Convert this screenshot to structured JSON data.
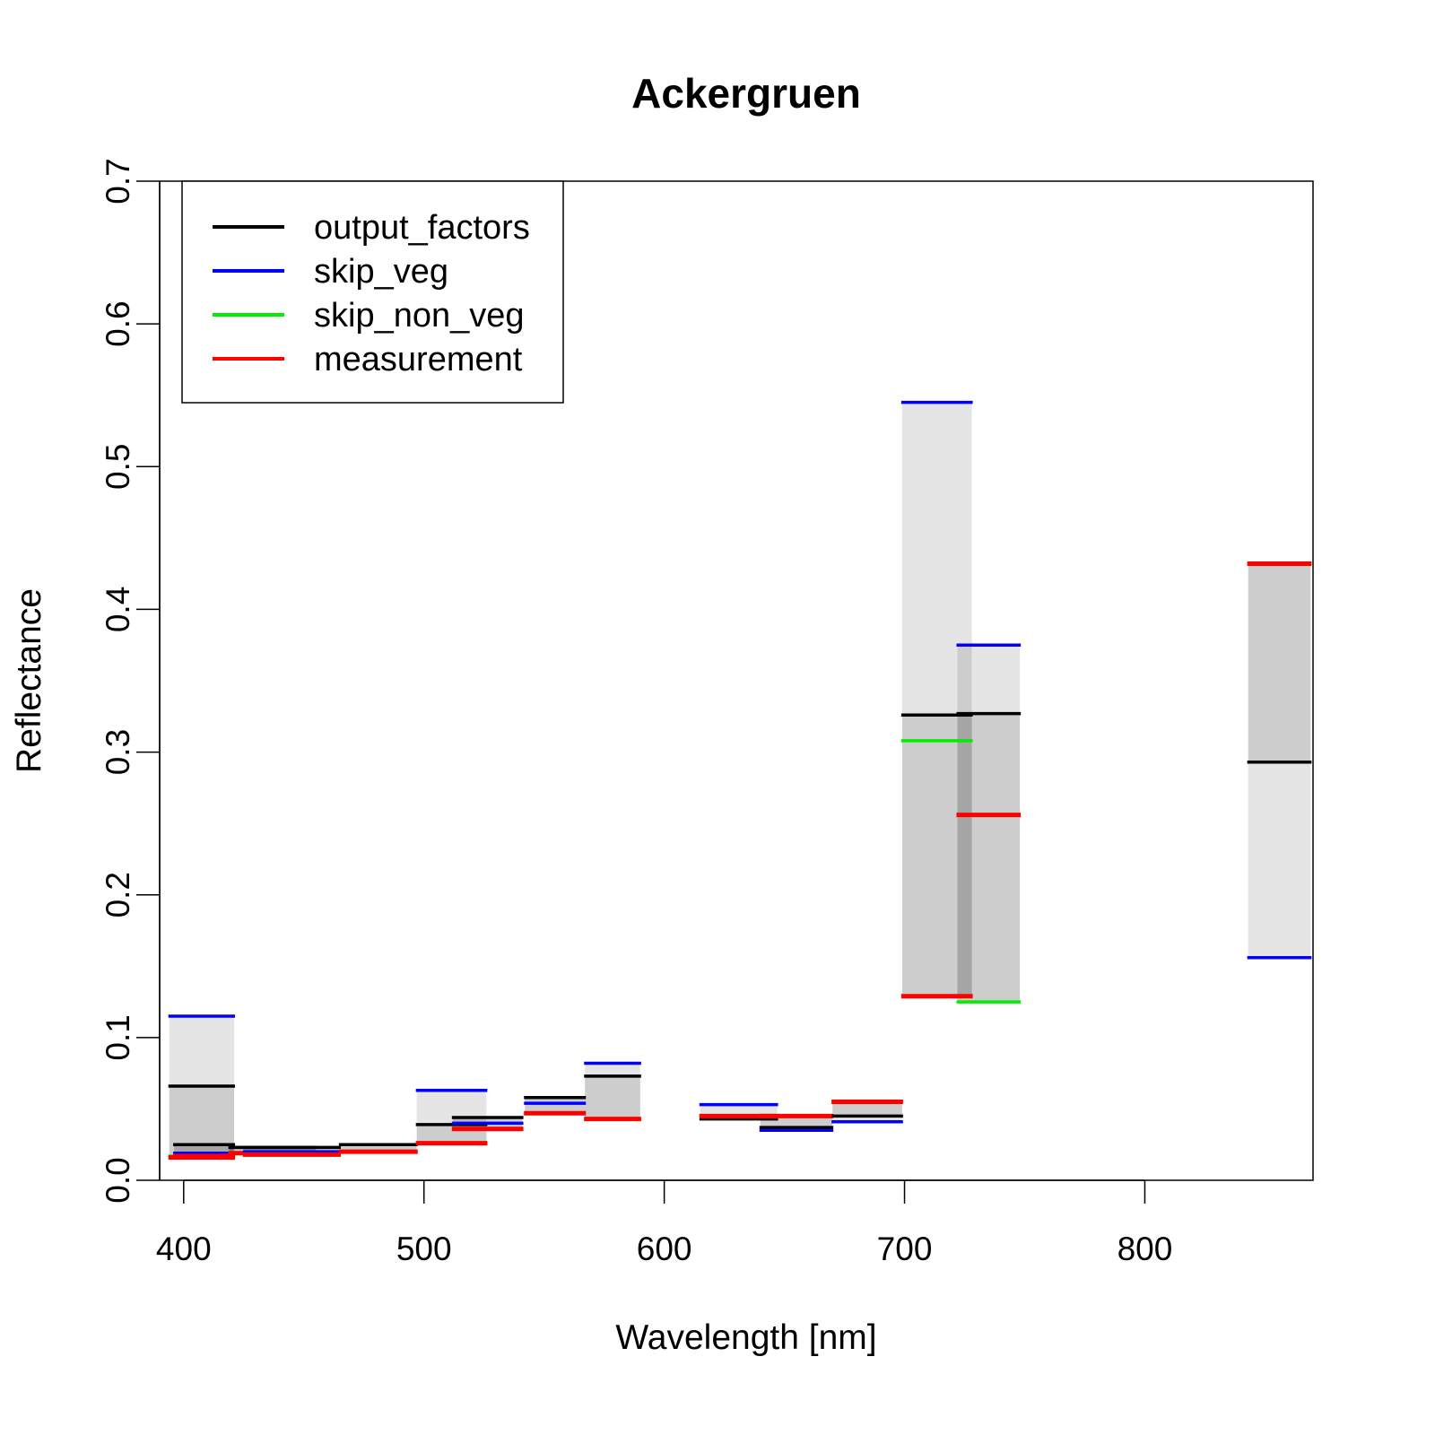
{
  "chart_data": {
    "type": "bar",
    "title": "Ackergruen",
    "xlabel": "Wavelength [nm]",
    "ylabel": "Reflectance",
    "xlim": [
      390,
      870
    ],
    "ylim": [
      0,
      0.7
    ],
    "xticks": [
      "400",
      "500",
      "600",
      "700",
      "800"
    ],
    "yticks": [
      "0.0",
      "0.1",
      "0.2",
      "0.3",
      "0.4",
      "0.5",
      "0.6",
      "0.7"
    ],
    "legend_position": "top-left",
    "grid": false,
    "series_colors": {
      "output_factors": "#000000",
      "skip_veg": "#0000ff",
      "skip_non_veg": "#00ee00",
      "measurement": "#ff0000"
    },
    "legend": [
      {
        "name": "output_factors",
        "color": "#000000"
      },
      {
        "name": "skip_veg",
        "color": "#0000ff"
      },
      {
        "name": "skip_non_veg",
        "color": "#00ee00"
      },
      {
        "name": "measurement",
        "color": "#ff0000"
      }
    ],
    "bands": [
      {
        "x0": 394,
        "x1": 421,
        "output_factors": 0.066,
        "skip_veg": 0.115,
        "skip_non_veg": 0.017,
        "measurement": 0.016
      },
      {
        "x0": 396,
        "x1": 421,
        "output_factors": 0.025,
        "skip_veg": 0.019,
        "skip_non_veg": 0.017,
        "measurement": 0.017
      },
      {
        "x0": 419,
        "x1": 455,
        "output_factors": 0.023,
        "skip_veg": 0.023,
        "skip_non_veg": 0.019,
        "measurement": 0.019
      },
      {
        "x0": 425,
        "x1": 465,
        "output_factors": 0.023,
        "skip_veg": 0.02,
        "skip_non_veg": 0.018,
        "measurement": 0.018
      },
      {
        "x0": 465,
        "x1": 497,
        "output_factors": 0.025,
        "skip_veg": 0.025,
        "skip_non_veg": 0.02,
        "measurement": 0.02
      },
      {
        "x0": 497,
        "x1": 526,
        "output_factors": 0.039,
        "skip_veg": 0.063,
        "skip_non_veg": 0.026,
        "measurement": 0.026
      },
      {
        "x0": 512,
        "x1": 541,
        "output_factors": 0.044,
        "skip_veg": 0.04,
        "skip_non_veg": 0.036,
        "measurement": 0.036
      },
      {
        "x0": 542,
        "x1": 567,
        "output_factors": 0.058,
        "skip_veg": 0.054,
        "skip_non_veg": 0.047,
        "measurement": 0.047
      },
      {
        "x0": 567,
        "x1": 590,
        "output_factors": 0.073,
        "skip_veg": 0.082,
        "skip_non_veg": 0.043,
        "measurement": 0.043
      },
      {
        "x0": 615,
        "x1": 647,
        "output_factors": 0.043,
        "skip_veg": 0.053,
        "skip_non_veg": 0.045,
        "measurement": 0.045
      },
      {
        "x0": 640,
        "x1": 670,
        "output_factors": 0.037,
        "skip_veg": 0.035,
        "skip_non_veg": 0.045,
        "measurement": 0.045
      },
      {
        "x0": 670,
        "x1": 699,
        "output_factors": 0.045,
        "skip_veg": 0.041,
        "skip_non_veg": 0.055,
        "measurement": 0.055
      },
      {
        "x0": 699,
        "x1": 728,
        "output_factors": 0.326,
        "skip_veg": 0.545,
        "skip_non_veg": 0.308,
        "measurement": 0.129
      },
      {
        "x0": 722,
        "x1": 748,
        "output_factors": 0.327,
        "skip_veg": 0.375,
        "skip_non_veg": 0.125,
        "measurement": 0.256
      },
      {
        "x0": 843,
        "x1": 869,
        "output_factors": 0.293,
        "skip_veg": 0.156,
        "skip_non_veg": 0.432,
        "measurement": 0.432
      }
    ]
  }
}
